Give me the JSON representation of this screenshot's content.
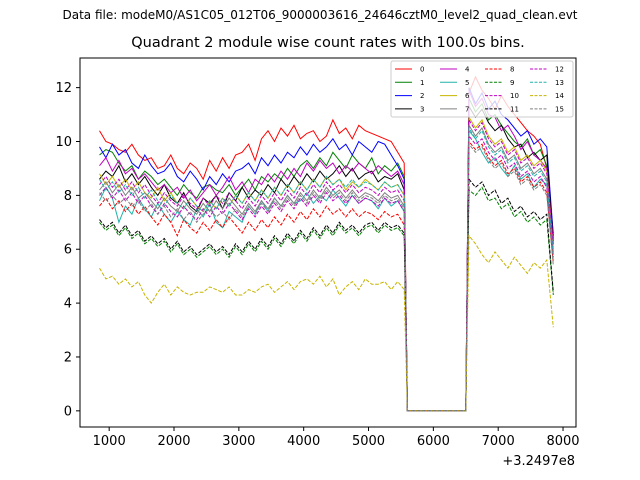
{
  "figure": {
    "suptitle": "Data file: modeM0/AS1C05_012T06_9000003616_24646cztM0_level2_quad_clean.evt",
    "title": "Quadrant 2 module wise count rates with 100.0s bins."
  },
  "chart_data": {
    "type": "line",
    "title": "Quadrant 2 module wise count rates with 100.0s bins.",
    "xlabel": "",
    "ylabel": "",
    "x_offset_label": "+3.2497e8",
    "xlim": [
      550,
      8200
    ],
    "ylim": [
      -0.6,
      13.1
    ],
    "xticks": [
      1000,
      2000,
      3000,
      4000,
      5000,
      6000,
      7000,
      8000
    ],
    "xtick_labels": [
      "1000",
      "2000",
      "3000",
      "4000",
      "5000",
      "6000",
      "7000",
      "8000"
    ],
    "yticks": [
      0,
      2,
      4,
      6,
      8,
      10,
      12
    ],
    "ytick_labels": [
      "0",
      "2",
      "4",
      "6",
      "8",
      "10",
      "12"
    ],
    "grid": false,
    "legend_position": "top-right",
    "legend_columns": 4,
    "gap": [
      5600,
      6500
    ],
    "segment1_x": [
      850,
      5550
    ],
    "segment2_x": [
      6550,
      7850
    ],
    "step": 100,
    "series": [
      {
        "name": "0",
        "color": "#ff0000",
        "style": "solid",
        "seg1": [
          10.4,
          10.0,
          9.9,
          9.7,
          9.6,
          9.9,
          9.5,
          9.3,
          9.4,
          9.0,
          9.1,
          9.5,
          9.0,
          8.8,
          9.2,
          9.0,
          8.6,
          9.3,
          8.9,
          9.4,
          9.0,
          9.5,
          9.6,
          9.9,
          9.3,
          10.1,
          10.4,
          10.0,
          10.5,
          10.2,
          10.6,
          10.1,
          10.3,
          10.4,
          10.0,
          10.2,
          10.8,
          10.3,
          10.5,
          10.1,
          10.6,
          10.4,
          10.3,
          10.2,
          10.1,
          10.0,
          9.6,
          9.2
        ],
        "seg2": [
          11.8,
          12.4,
          11.9,
          11.6,
          11.2,
          11.7,
          11.3,
          11.0,
          10.7,
          10.4,
          10.2,
          9.9,
          9.0,
          6.6
        ]
      },
      {
        "name": "1",
        "color": "#008000",
        "style": "solid",
        "seg1": [
          9.5,
          9.7,
          9.6,
          9.2,
          8.9,
          9.1,
          8.6,
          8.9,
          8.7,
          8.4,
          8.6,
          8.3,
          8.0,
          8.4,
          8.1,
          7.9,
          8.3,
          8.4,
          8.2,
          8.1,
          8.4,
          8.0,
          8.3,
          8.6,
          8.2,
          8.7,
          8.5,
          8.8,
          8.6,
          9.0,
          8.7,
          9.1,
          9.3,
          9.0,
          9.4,
          9.1,
          9.6,
          9.3,
          9.0,
          9.5,
          9.2,
          9.0,
          9.4,
          8.8,
          9.1,
          8.9,
          9.2,
          8.7
        ],
        "seg2": [
          11.6,
          11.1,
          11.4,
          10.8,
          11.0,
          10.6,
          10.3,
          10.0,
          9.8,
          10.1,
          9.5,
          9.7,
          9.1,
          6.4
        ]
      },
      {
        "name": "2",
        "color": "#0000ff",
        "style": "solid",
        "seg1": [
          9.8,
          9.4,
          9.9,
          9.5,
          9.7,
          9.2,
          9.0,
          9.5,
          9.1,
          8.8,
          8.9,
          9.2,
          8.7,
          8.5,
          8.9,
          8.6,
          8.2,
          8.7,
          8.4,
          8.8,
          8.5,
          8.9,
          9.0,
          9.2,
          8.8,
          9.4,
          9.1,
          9.5,
          9.2,
          9.6,
          9.4,
          9.8,
          9.5,
          9.9,
          9.6,
          9.8,
          10.1,
          9.7,
          9.9,
          9.5,
          10.0,
          9.8,
          9.6,
          10.0,
          9.9,
          9.5,
          9.1,
          8.6
        ],
        "seg2": [
          12.0,
          11.4,
          11.8,
          11.2,
          11.5,
          11.0,
          10.8,
          10.5,
          10.2,
          10.4,
          9.9,
          10.1,
          9.8,
          6.5
        ]
      },
      {
        "name": "3",
        "color": "#000000",
        "style": "solid",
        "seg1": [
          8.6,
          8.9,
          8.7,
          9.1,
          8.5,
          8.8,
          8.4,
          8.7,
          8.3,
          8.0,
          8.4,
          7.9,
          7.7,
          8.1,
          7.6,
          7.4,
          7.9,
          7.7,
          8.0,
          7.5,
          8.1,
          7.8,
          8.3,
          7.9,
          8.2,
          8.0,
          8.4,
          8.1,
          8.6,
          8.3,
          8.7,
          8.4,
          8.8,
          8.5,
          8.9,
          8.6,
          8.8,
          9.1,
          8.7,
          9.0,
          8.6,
          8.8,
          8.9,
          8.5,
          8.7,
          8.6,
          8.8,
          8.2
        ],
        "seg2": [
          11.3,
          10.9,
          11.2,
          10.7,
          10.4,
          10.6,
          10.1,
          9.8,
          9.9,
          9.4,
          9.6,
          9.3,
          9.5,
          6.3
        ]
      },
      {
        "name": "4",
        "color": "#c000c0",
        "style": "solid",
        "seg1": [
          9.1,
          9.4,
          8.9,
          9.3,
          8.8,
          9.0,
          8.6,
          8.8,
          8.5,
          8.2,
          8.4,
          8.1,
          8.3,
          7.9,
          8.2,
          7.8,
          8.1,
          8.4,
          8.0,
          8.3,
          8.7,
          8.2,
          8.5,
          8.1,
          8.6,
          8.4,
          8.8,
          8.5,
          8.9,
          8.6,
          9.0,
          8.7,
          9.2,
          8.9,
          9.3,
          9.0,
          9.2,
          8.8,
          9.1,
          8.9,
          9.2,
          9.0,
          8.8,
          9.1,
          8.9,
          8.7,
          8.9,
          8.4
        ],
        "seg2": [
          11.9,
          11.3,
          11.6,
          11.0,
          10.9,
          10.4,
          10.6,
          10.2,
          9.7,
          10.0,
          9.5,
          9.3,
          9.0,
          6.2
        ]
      },
      {
        "name": "5",
        "color": "#20b2aa",
        "style": "solid",
        "seg1": [
          7.8,
          8.3,
          7.9,
          7.0,
          7.6,
          7.3,
          7.9,
          7.5,
          7.2,
          7.7,
          7.3,
          7.0,
          7.4,
          7.1,
          6.9,
          7.5,
          7.2,
          7.7,
          7.0,
          6.8,
          7.4,
          7.2,
          7.0,
          7.6,
          7.3,
          7.8,
          7.4,
          7.9,
          7.6,
          8.0,
          7.7,
          7.8,
          8.1,
          7.7,
          8.0,
          7.8,
          8.2,
          7.9,
          7.6,
          8.0,
          7.7,
          7.9,
          7.8,
          7.5,
          7.9,
          7.6,
          7.8,
          7.4
        ],
        "seg2": [
          10.4,
          10.1,
          9.6,
          9.2,
          9.4,
          9.0,
          8.7,
          9.1,
          8.6,
          8.8,
          8.3,
          8.6,
          8.4,
          5.8
        ]
      },
      {
        "name": "6",
        "color": "#c8b400",
        "style": "solid",
        "seg1": [
          8.8,
          8.4,
          8.7,
          8.3,
          8.6,
          8.2,
          8.5,
          8.1,
          7.9,
          8.3,
          7.8,
          8.1,
          7.7,
          7.5,
          7.9,
          7.6,
          7.4,
          7.8,
          7.5,
          7.9,
          7.6,
          8.0,
          7.7,
          8.1,
          7.8,
          8.2,
          7.9,
          8.3,
          8.0,
          8.4,
          8.1,
          8.5,
          8.2,
          8.6,
          8.3,
          8.7,
          8.4,
          8.6,
          8.2,
          8.5,
          8.3,
          8.6,
          8.4,
          8.2,
          8.5,
          8.3,
          8.4,
          8.0
        ],
        "seg2": [
          10.9,
          10.5,
          10.8,
          10.2,
          9.9,
          10.1,
          9.6,
          9.8,
          9.3,
          9.5,
          9.1,
          9.3,
          8.9,
          6.0
        ]
      },
      {
        "name": "7",
        "color": "#808080",
        "style": "solid",
        "seg1": [
          8.2,
          8.5,
          8.1,
          8.4,
          8.0,
          8.3,
          7.9,
          8.1,
          7.8,
          7.5,
          7.9,
          7.6,
          7.4,
          7.8,
          7.5,
          7.3,
          7.7,
          7.4,
          7.8,
          7.5,
          7.9,
          7.6,
          7.3,
          7.7,
          7.4,
          7.8,
          7.5,
          7.9,
          7.6,
          8.0,
          7.7,
          8.1,
          7.8,
          8.2,
          7.9,
          8.3,
          8.0,
          8.2,
          7.9,
          8.2,
          7.9,
          8.1,
          8.0,
          7.8,
          8.1,
          7.9,
          8.0,
          7.6
        ],
        "seg2": [
          10.6,
          10.2,
          10.5,
          9.9,
          9.6,
          9.8,
          9.3,
          9.5,
          9.0,
          9.2,
          8.8,
          9.0,
          8.6,
          5.9
        ]
      },
      {
        "name": "8",
        "color": "#ff0000",
        "style": "dashed",
        "seg1": [
          7.6,
          7.9,
          7.5,
          7.8,
          7.4,
          7.7,
          7.3,
          7.6,
          7.2,
          6.9,
          7.3,
          7.0,
          6.5,
          7.1,
          6.8,
          6.6,
          7.0,
          6.7,
          7.1,
          6.8,
          7.2,
          6.9,
          6.6,
          7.0,
          6.7,
          7.1,
          6.8,
          7.2,
          6.9,
          7.3,
          7.0,
          7.4,
          7.1,
          7.5,
          7.2,
          7.6,
          7.3,
          7.5,
          7.2,
          7.5,
          7.2,
          7.4,
          7.3,
          7.1,
          7.4,
          7.2,
          7.3,
          6.9
        ],
        "seg2": [
          10.0,
          9.7,
          9.9,
          9.4,
          9.1,
          9.3,
          8.8,
          9.0,
          8.5,
          8.7,
          8.3,
          8.5,
          8.1,
          5.5
        ]
      },
      {
        "name": "9",
        "color": "#008000",
        "style": "dashed",
        "seg1": [
          7.0,
          6.7,
          6.9,
          6.5,
          6.8,
          6.4,
          6.6,
          6.2,
          6.4,
          6.1,
          6.3,
          5.9,
          6.2,
          5.8,
          6.0,
          5.7,
          5.9,
          6.1,
          5.8,
          6.0,
          5.7,
          6.1,
          5.8,
          6.2,
          5.9,
          6.3,
          6.0,
          6.4,
          6.1,
          6.5,
          6.2,
          6.6,
          6.3,
          6.7,
          6.4,
          6.8,
          6.5,
          6.9,
          6.6,
          6.8,
          6.5,
          6.8,
          6.9,
          6.6,
          6.9,
          6.7,
          6.8,
          6.5
        ],
        "seg2": [
          8.2,
          8.0,
          8.3,
          7.8,
          7.9,
          7.5,
          7.7,
          7.2,
          7.4,
          7.0,
          7.2,
          6.9,
          7.1,
          4.3
        ]
      },
      {
        "name": "10",
        "color": "#c000c0",
        "style": "dashed",
        "seg1": [
          8.0,
          8.3,
          7.9,
          8.2,
          7.8,
          8.1,
          7.7,
          8.0,
          7.6,
          7.3,
          7.7,
          7.4,
          7.2,
          7.6,
          7.3,
          7.1,
          7.5,
          7.2,
          7.6,
          7.3,
          7.7,
          7.4,
          7.1,
          7.5,
          7.2,
          7.6,
          7.3,
          7.7,
          7.4,
          7.8,
          7.5,
          7.9,
          7.6,
          8.0,
          7.7,
          8.1,
          7.8,
          8.0,
          7.7,
          8.0,
          7.7,
          7.9,
          7.8,
          7.6,
          7.9,
          7.7,
          7.8,
          7.4
        ],
        "seg2": [
          10.2,
          9.9,
          10.1,
          9.6,
          9.3,
          9.5,
          9.0,
          9.2,
          8.7,
          8.9,
          8.5,
          8.7,
          8.3,
          5.7
        ]
      },
      {
        "name": "11",
        "color": "#000000",
        "style": "dashed",
        "seg1": [
          7.1,
          6.8,
          7.0,
          6.6,
          6.9,
          6.5,
          6.7,
          6.3,
          6.5,
          6.2,
          6.4,
          6.0,
          6.3,
          5.9,
          6.1,
          5.8,
          6.0,
          6.2,
          5.9,
          6.1,
          5.8,
          6.2,
          5.9,
          6.3,
          6.0,
          6.4,
          6.1,
          6.5,
          6.2,
          6.6,
          6.3,
          6.7,
          6.4,
          6.8,
          6.5,
          6.9,
          6.6,
          7.0,
          6.7,
          6.9,
          6.6,
          6.9,
          7.0,
          6.7,
          7.0,
          6.8,
          6.9,
          6.6
        ],
        "seg2": [
          8.6,
          8.3,
          8.5,
          8.0,
          8.2,
          7.7,
          7.9,
          7.4,
          7.6,
          7.2,
          7.4,
          7.1,
          7.3,
          4.4
        ]
      },
      {
        "name": "12",
        "color": "#c000c0",
        "style": "dashed",
        "seg1": [
          8.4,
          8.7,
          8.3,
          8.6,
          8.2,
          8.5,
          8.1,
          8.4,
          8.0,
          7.7,
          8.1,
          7.8,
          7.6,
          8.0,
          7.7,
          7.5,
          7.9,
          7.6,
          8.0,
          7.7,
          8.1,
          7.8,
          7.5,
          7.9,
          7.6,
          8.0,
          7.7,
          8.1,
          7.8,
          8.2,
          7.9,
          8.3,
          8.0,
          8.4,
          8.1,
          8.5,
          8.2,
          8.4,
          8.1,
          8.4,
          8.1,
          8.3,
          8.2,
          8.0,
          8.3,
          8.1,
          8.2,
          7.8
        ],
        "seg2": [
          10.8,
          10.4,
          10.7,
          10.1,
          9.8,
          10.0,
          9.5,
          9.7,
          9.2,
          9.4,
          9.0,
          9.2,
          8.8,
          6.1
        ]
      },
      {
        "name": "13",
        "color": "#20b2aa",
        "style": "dashed",
        "seg1": [
          8.6,
          8.2,
          8.5,
          8.1,
          8.4,
          8.0,
          8.3,
          7.9,
          8.2,
          7.8,
          7.6,
          8.0,
          7.7,
          7.5,
          7.9,
          7.6,
          7.4,
          7.8,
          7.5,
          7.9,
          7.6,
          8.0,
          7.7,
          8.1,
          7.8,
          8.2,
          7.9,
          8.3,
          8.0,
          8.4,
          8.1,
          8.5,
          8.2,
          8.6,
          8.3,
          8.7,
          8.4,
          8.6,
          8.3,
          8.6,
          8.3,
          8.5,
          8.4,
          8.2,
          8.5,
          8.3,
          8.4,
          8.0
        ],
        "seg2": [
          10.5,
          10.1,
          10.4,
          9.8,
          9.5,
          9.7,
          9.2,
          9.4,
          8.9,
          9.1,
          8.7,
          8.9,
          8.5,
          5.8
        ]
      },
      {
        "name": "14",
        "color": "#c8b400",
        "style": "dashed",
        "seg1": [
          5.3,
          4.9,
          5.0,
          4.7,
          4.9,
          4.6,
          4.8,
          4.3,
          4.0,
          4.4,
          4.7,
          4.3,
          4.6,
          4.4,
          4.3,
          4.4,
          4.4,
          4.6,
          4.5,
          4.4,
          4.6,
          4.3,
          4.3,
          4.5,
          4.4,
          4.6,
          4.7,
          4.4,
          4.6,
          4.8,
          4.5,
          4.8,
          4.9,
          4.7,
          5.0,
          4.6,
          4.9,
          4.3,
          4.6,
          4.8,
          4.5,
          4.9,
          4.7,
          4.7,
          4.8,
          4.5,
          4.8,
          4.5
        ],
        "seg2": [
          6.5,
          6.2,
          5.8,
          5.5,
          5.9,
          5.6,
          5.3,
          5.7,
          5.4,
          5.1,
          5.5,
          5.3,
          5.6,
          3.1
        ]
      },
      {
        "name": "15",
        "color": "#808080",
        "style": "dashed",
        "seg1": [
          8.1,
          7.8,
          8.0,
          7.7,
          7.9,
          7.6,
          7.8,
          7.4,
          7.7,
          7.3,
          7.6,
          7.2,
          7.5,
          7.1,
          7.4,
          7.0,
          7.3,
          7.5,
          7.2,
          7.4,
          7.1,
          7.5,
          7.2,
          7.6,
          7.3,
          7.7,
          7.4,
          7.8,
          7.5,
          7.9,
          7.6,
          8.0,
          7.7,
          8.1,
          7.8,
          8.2,
          7.9,
          8.1,
          7.8,
          8.1,
          7.8,
          8.0,
          7.9,
          7.7,
          8.0,
          7.8,
          7.9,
          7.5
        ],
        "seg2": [
          9.9,
          9.6,
          9.8,
          9.3,
          9.0,
          9.2,
          8.7,
          8.9,
          8.4,
          8.6,
          8.2,
          8.4,
          8.0,
          5.4
        ]
      }
    ]
  }
}
